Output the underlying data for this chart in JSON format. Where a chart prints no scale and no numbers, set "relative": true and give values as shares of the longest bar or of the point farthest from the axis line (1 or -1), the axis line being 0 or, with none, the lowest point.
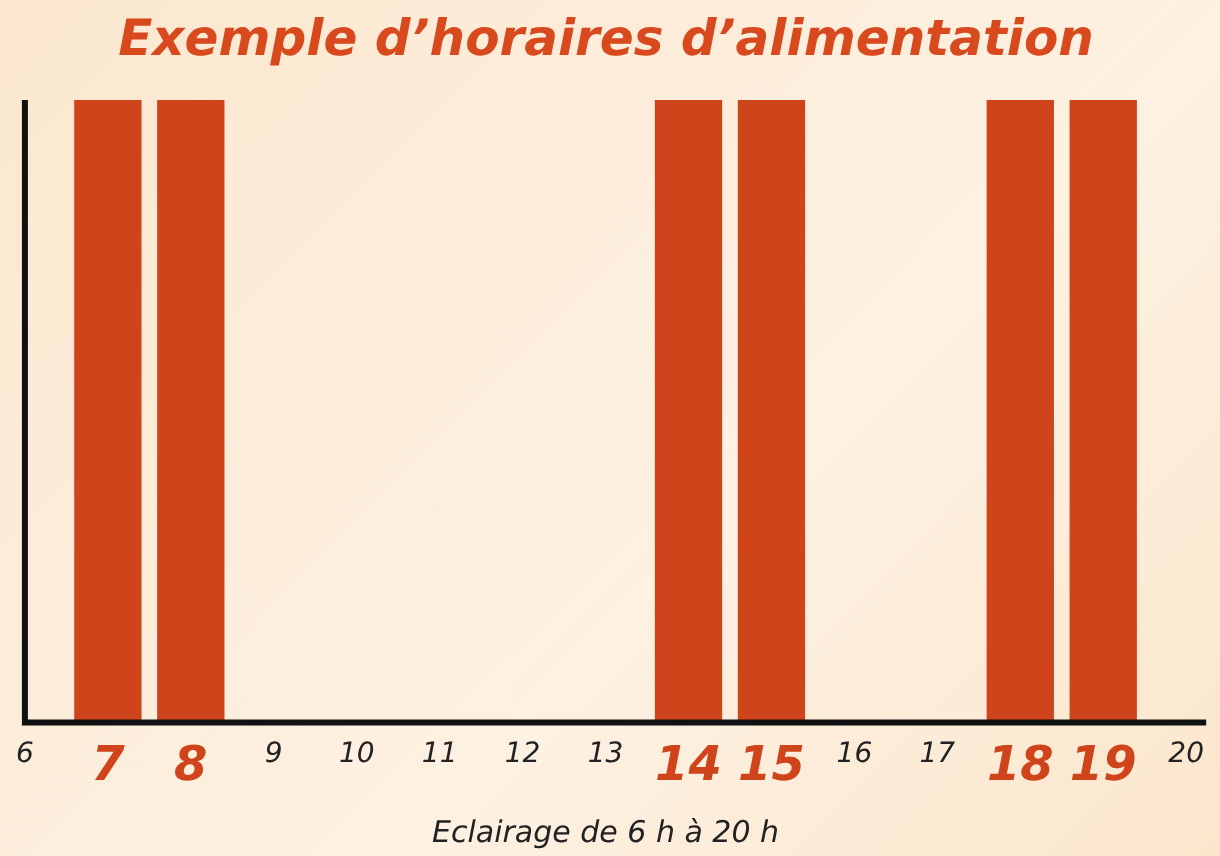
{
  "chart_data": {
    "type": "bar",
    "title": "Exemple d’horaires d’alimentation",
    "xlabel": "Eclairage de 6 h à 20 h",
    "categories": [
      "6",
      "7",
      "8",
      "9",
      "10",
      "11",
      "12",
      "13",
      "14",
      "15",
      "16",
      "17",
      "18",
      "19",
      "20"
    ],
    "values": [
      0,
      1,
      1,
      0,
      0,
      0,
      0,
      0,
      1,
      1,
      0,
      0,
      1,
      1,
      0
    ],
    "color": "#d0441c",
    "relative": true,
    "grid": false,
    "legend": false
  }
}
